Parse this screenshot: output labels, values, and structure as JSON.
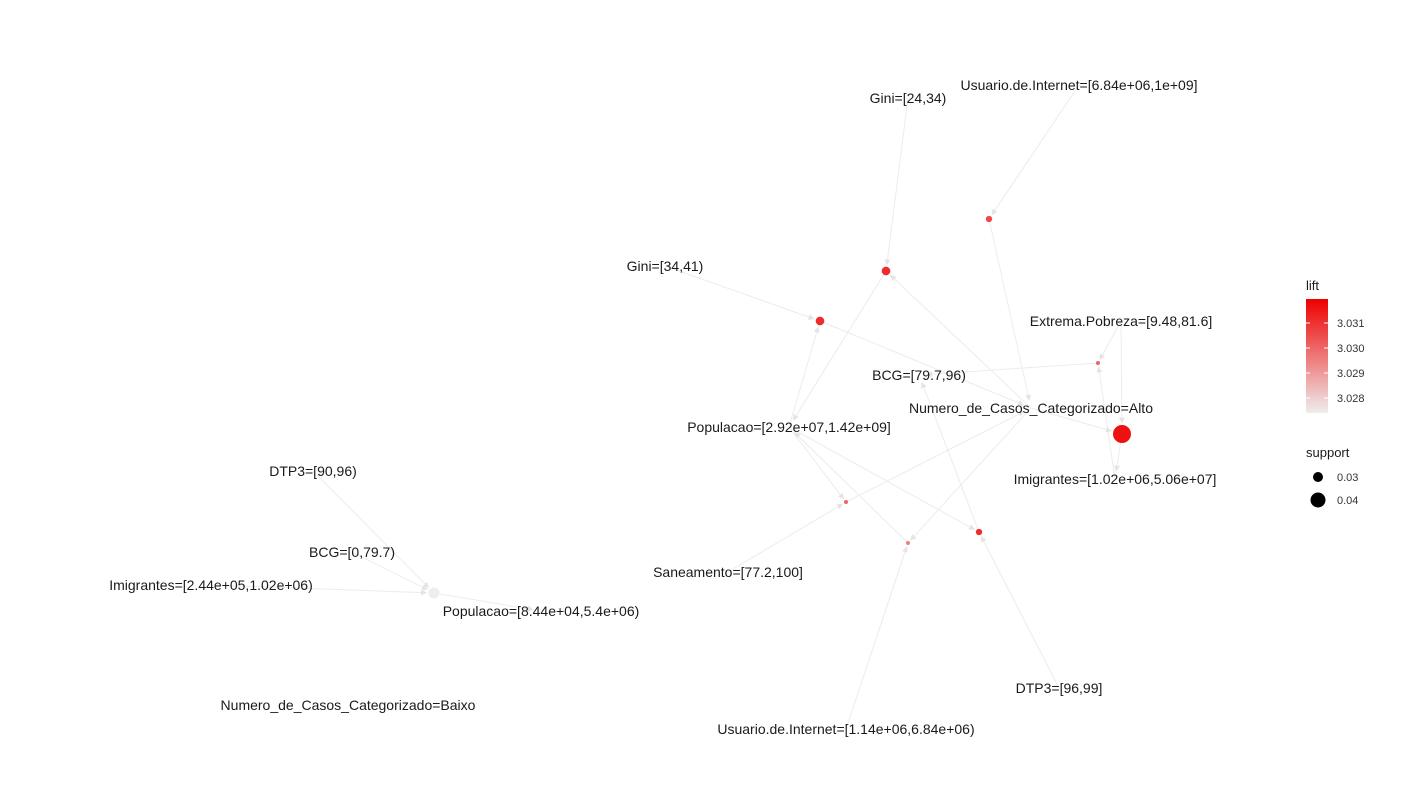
{
  "legend": {
    "lift_title": "lift",
    "lift_ticks": [
      "3.031",
      "3.030",
      "3.029",
      "3.028"
    ],
    "lift_color_high": "#ee0000",
    "lift_color_low": "#eeeeee",
    "support_title": "support",
    "support_ticks": [
      "0.03",
      "0.04"
    ]
  },
  "items": [
    {
      "id": "gini_24_34",
      "label": "Gini=[24,34)"
    },
    {
      "id": "internet_high",
      "label": "Usuario.de.Internet=[6.84e+06,1e+09]"
    },
    {
      "id": "gini_34_41",
      "label": "Gini=[34,41)"
    },
    {
      "id": "pobreza",
      "label": "Extrema.Pobreza=[9.48,81.6]"
    },
    {
      "id": "bcg_high",
      "label": "BCG=[79.7,96)"
    },
    {
      "id": "casos_alto",
      "label": "Numero_de_Casos_Categorizado=Alto"
    },
    {
      "id": "pop_high",
      "label": "Populacao=[2.92e+07,1.42e+09]"
    },
    {
      "id": "imig_high",
      "label": "Imigrantes=[1.02e+06,5.06e+07]"
    },
    {
      "id": "dtp3_90_96",
      "label": "DTP3=[90,96)"
    },
    {
      "id": "bcg_low",
      "label": "BCG=[0,79.7)"
    },
    {
      "id": "imig_low",
      "label": "Imigrantes=[2.44e+05,1.02e+06)"
    },
    {
      "id": "pop_low",
      "label": "Populacao=[8.44e+04,5.4e+06)"
    },
    {
      "id": "saneamento",
      "label": "Saneamento=[77.2,100]"
    },
    {
      "id": "casos_baixo",
      "label": "Numero_de_Casos_Categorizado=Baixo"
    },
    {
      "id": "dtp3_96_99",
      "label": "DTP3=[96,99]"
    },
    {
      "id": "internet_low",
      "label": "Usuario.de.Internet=[1.14e+06,6.84e+06)"
    }
  ],
  "rules": [
    {
      "id": "r1",
      "lift": 3.0305,
      "support": 0.03,
      "lhs": [
        "internet_high"
      ],
      "rhs": "casos_alto"
    },
    {
      "id": "r2",
      "lift": 3.031,
      "support": 0.033,
      "lhs": [
        "gini_24_34",
        "casos_alto"
      ],
      "rhs": "pop_high"
    },
    {
      "id": "r3",
      "lift": 3.031,
      "support": 0.033,
      "lhs": [
        "gini_34_41",
        "pop_high"
      ],
      "rhs": "casos_alto"
    },
    {
      "id": "r4",
      "lift": 3.03,
      "support": 0.027,
      "lhs": [
        "pobreza",
        "imig_high"
      ],
      "rhs": "bcg_high"
    },
    {
      "id": "r5",
      "lift": 3.0315,
      "support": 0.045,
      "lhs": [
        "casos_alto",
        "pobreza"
      ],
      "rhs": "imig_high"
    },
    {
      "id": "r6",
      "lift": 3.03,
      "support": 0.027,
      "lhs": [
        "saneamento",
        "pop_high"
      ],
      "rhs": "casos_alto"
    },
    {
      "id": "r7",
      "lift": 3.0295,
      "support": 0.027,
      "lhs": [
        "internet_low",
        "casos_alto"
      ],
      "rhs": "pop_high"
    },
    {
      "id": "r8",
      "lift": 3.031,
      "support": 0.03,
      "lhs": [
        "dtp3_96_99",
        "pop_high"
      ],
      "rhs": "bcg_high"
    },
    {
      "id": "r9",
      "lift": 3.0275,
      "support": 0.036,
      "lhs": [
        "dtp3_90_96",
        "bcg_low",
        "imig_low"
      ],
      "rhs": "pop_low"
    }
  ]
}
